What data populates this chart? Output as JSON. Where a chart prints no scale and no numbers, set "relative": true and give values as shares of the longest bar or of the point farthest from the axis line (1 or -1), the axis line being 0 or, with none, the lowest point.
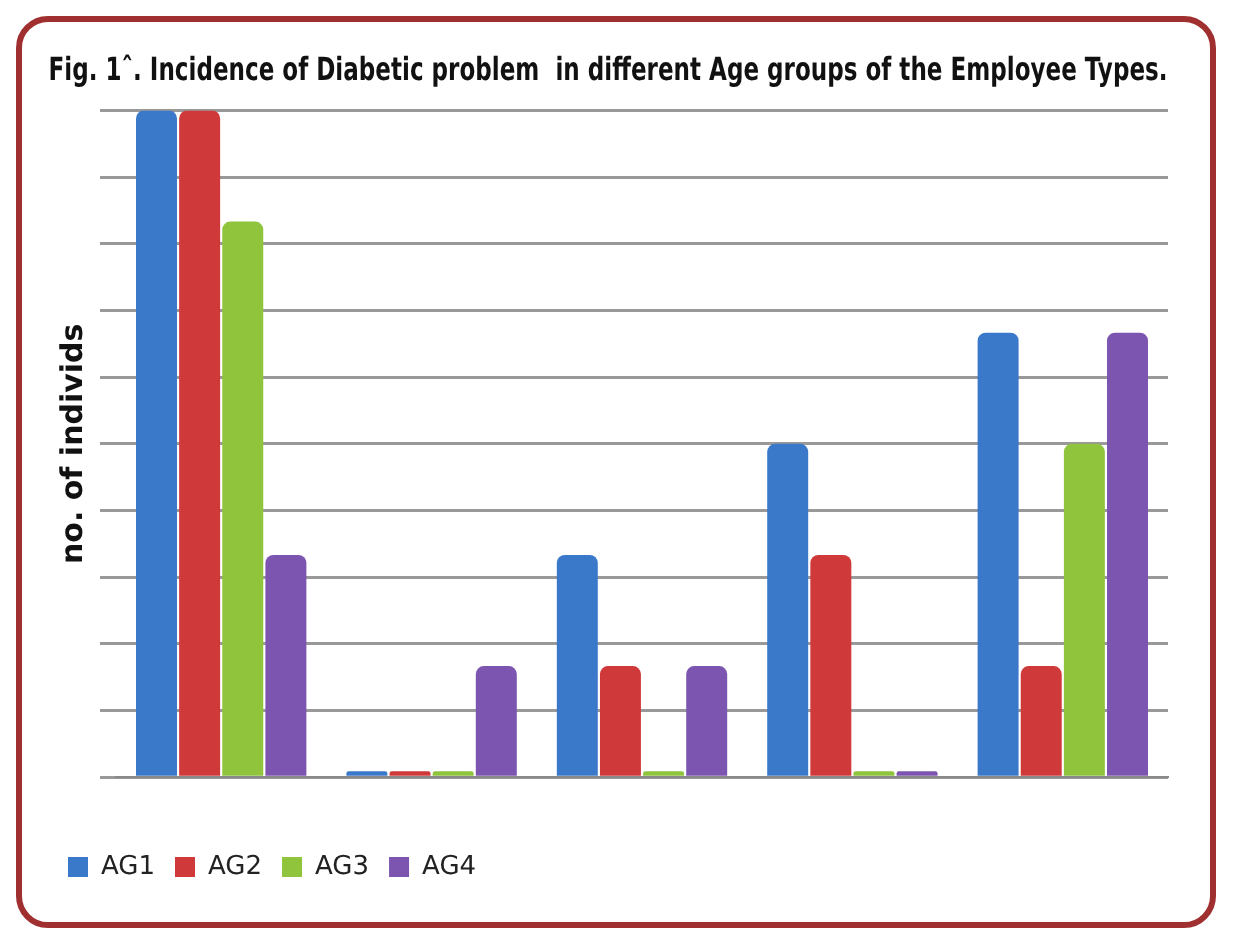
{
  "chart_data": {
    "type": "bar",
    "title": "Fig. 1ˆ. Incidence of Diabetic problem  in different Age groups of the Employee Types.",
    "ylabel": "no. of individs",
    "categories": [
      null,
      null,
      null,
      null,
      null
    ],
    "relative": true,
    "grid": "y",
    "legend": "bottom left",
    "series": [
      {
        "name": "AG1",
        "color": "#3a78c9",
        "values": [
          1,
          0,
          0.3333,
          0.5,
          0.6667
        ]
      },
      {
        "name": "AG2",
        "color": "#d0393a",
        "values": [
          1,
          0,
          0.1667,
          0.3333,
          0.1667
        ]
      },
      {
        "name": "AG3",
        "color": "#8fc43c",
        "values": [
          0.8333,
          0,
          0,
          0,
          0.5
        ]
      },
      {
        "name": "AG4",
        "color": "#7b55b0",
        "values": [
          0.3333,
          0.1667,
          0.1667,
          0,
          0.6667
        ]
      }
    ]
  }
}
